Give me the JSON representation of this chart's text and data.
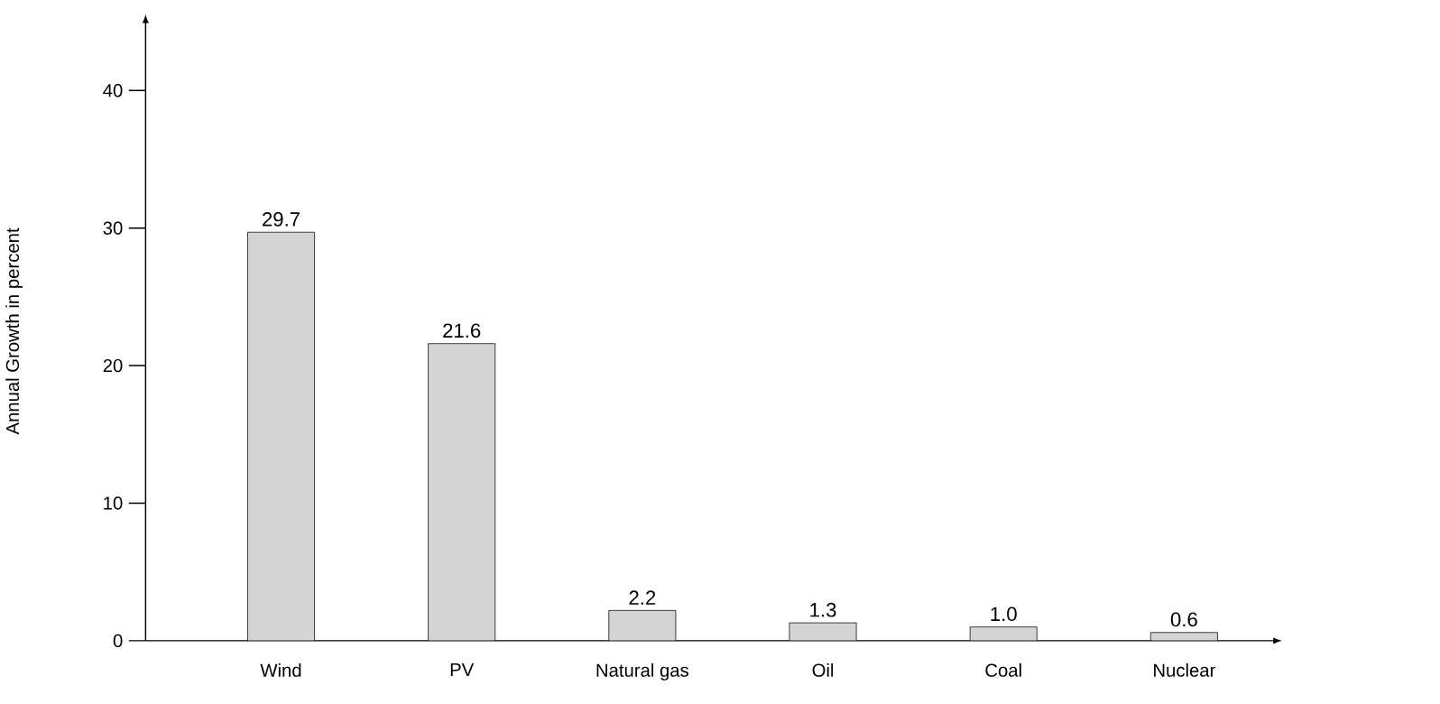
{
  "chart_data": {
    "type": "bar",
    "ylabel": "Annual Growth in percent",
    "categories": [
      "Wind",
      "PV",
      "Natural gas",
      "Oil",
      "Coal",
      "Nuclear"
    ],
    "values": [
      29.7,
      21.6,
      2.2,
      1.3,
      1.0,
      0.6
    ],
    "value_labels": [
      "29.7",
      "21.6",
      "2.2",
      "1.3",
      "1.0",
      "0.6"
    ],
    "color": "#d4d4d4",
    "ylim": [
      0,
      45
    ],
    "yticks": [
      0,
      10,
      20,
      30,
      40
    ],
    "grid": false
  }
}
